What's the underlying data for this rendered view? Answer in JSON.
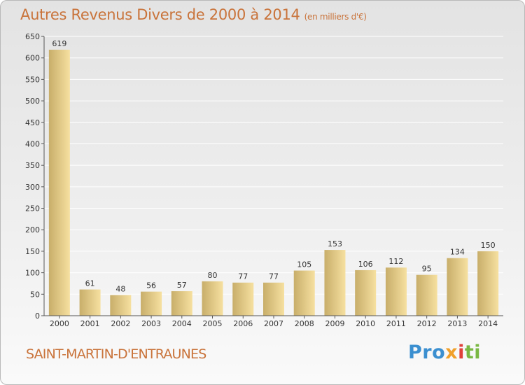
{
  "title": {
    "main": "Autres Revenus Divers de 2000 à 2014",
    "unit": "(en milliers d'€)"
  },
  "commune": "SAINT-MARTIN-D'ENTRAUNES",
  "logo": {
    "parts": [
      "Pro",
      "x",
      "i",
      "ti"
    ],
    "colors": [
      "#3b8fd0",
      "#f0a02a",
      "#e0403a",
      "#7ab843"
    ]
  },
  "colors": {
    "title": "#c9733a",
    "bar_light": "#f6e0a0",
    "bar_dark": "#c8ae6a",
    "grid": "#ffffff"
  },
  "chart_data": {
    "type": "bar",
    "categories": [
      "2000",
      "2001",
      "2002",
      "2003",
      "2004",
      "2005",
      "2006",
      "2007",
      "2008",
      "2009",
      "2010",
      "2011",
      "2012",
      "2013",
      "2014"
    ],
    "values": [
      619,
      61,
      48,
      56,
      57,
      80,
      77,
      77,
      105,
      153,
      106,
      112,
      95,
      134,
      150
    ],
    "title": "Autres Revenus Divers de 2000 à 2014",
    "subtitle": "(en milliers d'€)",
    "ylim": [
      0,
      650
    ],
    "yticks": [
      0,
      50,
      100,
      150,
      200,
      250,
      300,
      350,
      400,
      450,
      500,
      550,
      600,
      650
    ],
    "grid": true
  }
}
